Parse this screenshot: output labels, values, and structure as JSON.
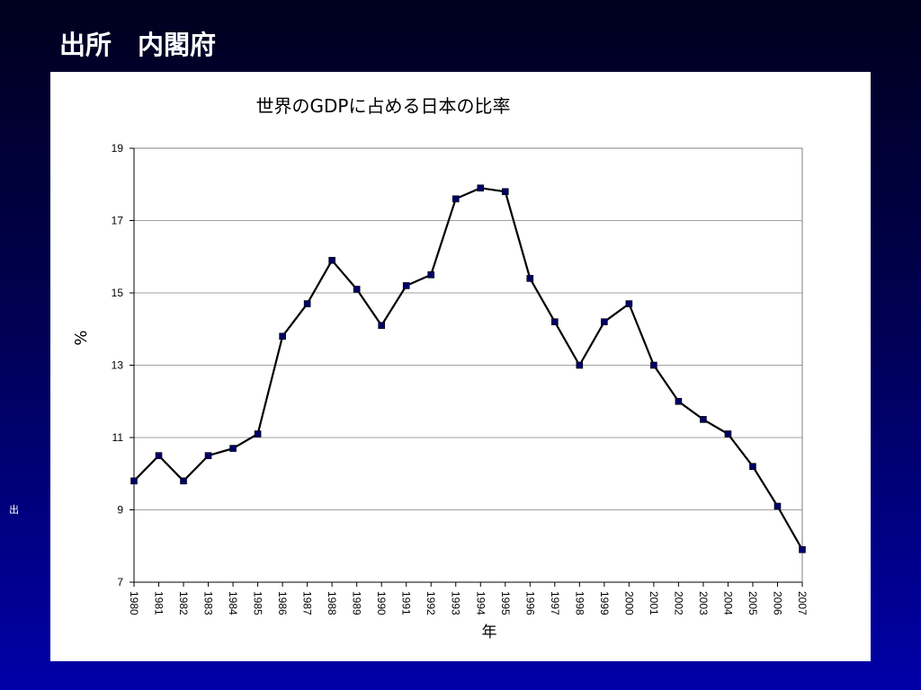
{
  "slide": {
    "title": "出所　内閣府",
    "side_mark": "出"
  },
  "colors": {
    "background_top": "#00001e",
    "background_bottom": "#0000a8",
    "line": "#000000",
    "marker": "#000066",
    "grid": "#a0a0a0"
  },
  "chart_data": {
    "type": "line",
    "title": "世界のGDPに占める日本の比率",
    "xlabel": "年",
    "ylabel": "%",
    "ylim": [
      7,
      19
    ],
    "yticks": [
      7,
      9,
      11,
      13,
      15,
      17,
      19
    ],
    "grid": true,
    "legend": "none",
    "categories": [
      "1980",
      "1981",
      "1982",
      "1983",
      "1984",
      "1985",
      "1986",
      "1987",
      "1988",
      "1989",
      "1990",
      "1991",
      "1992",
      "1993",
      "1994",
      "1995",
      "1996",
      "1997",
      "1998",
      "1999",
      "2000",
      "2001",
      "2002",
      "2003",
      "2004",
      "2005",
      "2006",
      "2007"
    ],
    "series": [
      {
        "values": [
          9.8,
          10.5,
          9.8,
          10.5,
          10.7,
          11.1,
          13.8,
          14.7,
          15.9,
          15.1,
          14.1,
          15.2,
          15.5,
          17.6,
          17.9,
          17.8,
          15.4,
          14.2,
          13.0,
          14.2,
          14.7,
          13.0,
          12.0,
          11.5,
          11.1,
          10.2,
          9.1,
          7.9
        ]
      }
    ]
  }
}
